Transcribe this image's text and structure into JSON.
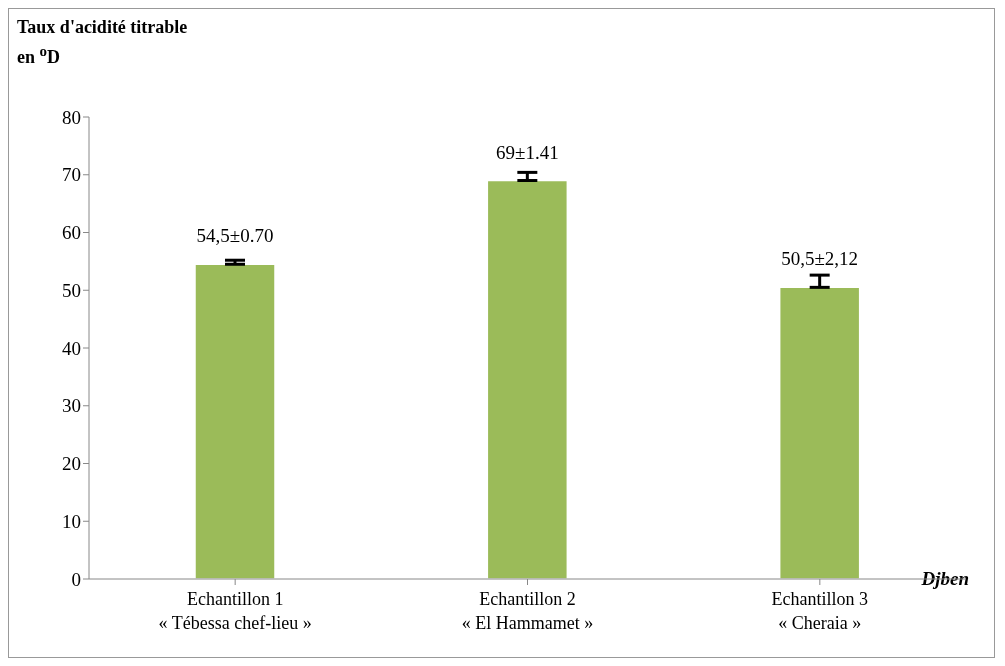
{
  "chart_data": {
    "type": "bar",
    "ylabel": "Taux d'acidité titrable en $^{o}$D",
    "xlabel": "Djben",
    "categories": [
      "Echantillon 1\n« Tébessa chef-lieu »",
      "Echantillon 2\n« El Hammamet »",
      "Echantillon 3\n« Cheraia »"
    ],
    "values": [
      54.5,
      69,
      50.5
    ],
    "color": "#9bbb59",
    "errors": [
      [
        54.5,
        55.2
      ],
      [
        69,
        70.41
      ],
      [
        50.5,
        52.62
      ]
    ],
    "value_labels": [
      "54,5±0.70",
      "69±1.41",
      "50,5±2,12"
    ],
    "ylim": [
      0,
      80
    ],
    "yticks": [
      0,
      10,
      20,
      30,
      40,
      50,
      60,
      70,
      80
    ],
    "grid": false,
    "legend": false
  }
}
